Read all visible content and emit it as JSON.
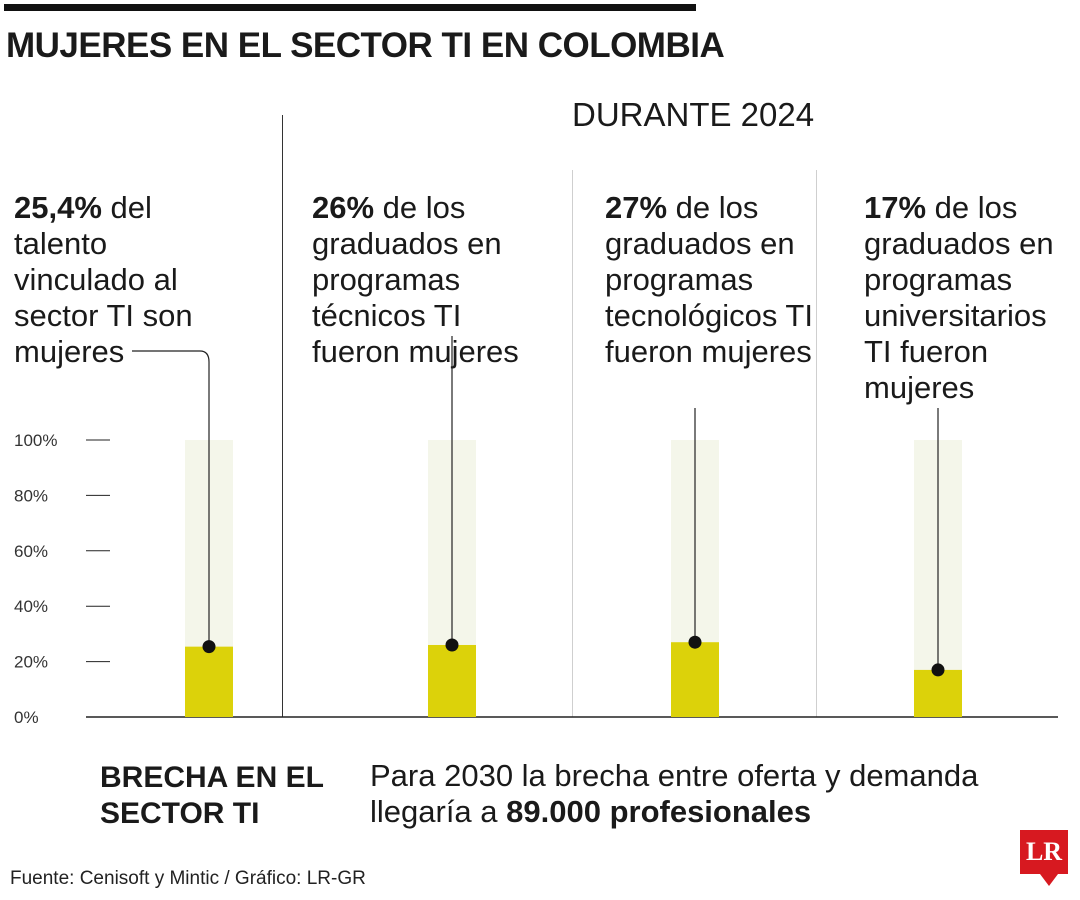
{
  "title": "MUJERES EN EL SECTOR TI EN COLOMBIA",
  "subtitle": "DURANTE 2024",
  "annotations": [
    {
      "value": "25,4%",
      "text": " del talento vinculado al sector TI son mujeres"
    },
    {
      "value": "26%",
      "text": " de los graduados en programas técnicos TI fueron mujeres"
    },
    {
      "value": "27%",
      "text": " de los graduados en programas tecnológicos TI fueron mujeres"
    },
    {
      "value": "17%",
      "text": " de los graduados en programas universitarios TI fueron mujeres"
    }
  ],
  "chart_data": {
    "type": "bar",
    "categories": [
      "",
      "",
      "",
      ""
    ],
    "values": [
      25.4,
      26,
      27,
      17
    ],
    "ylim": [
      0,
      100
    ],
    "yticks": [
      "0%",
      "20%",
      "40%",
      "60%",
      "80%",
      "100%"
    ],
    "xlabel": "",
    "ylabel": "",
    "grid": false,
    "colors": {
      "bar": "#dcd20a",
      "track": "#f4f6ea",
      "axis": "#222222"
    }
  },
  "footer": {
    "brecha": "BRECHA EN EL SECTOR TI",
    "note_text": "Para 2030 la brecha entre oferta y demanda llegaría a ",
    "note_value": "89.000 profesionales",
    "source": "Fuente: Cenisoft y Mintic / Gráfico: LR-GR",
    "logo": "LR"
  }
}
